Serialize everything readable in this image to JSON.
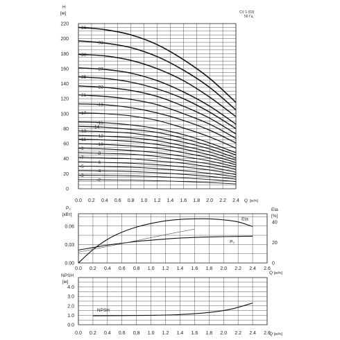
{
  "chart_data": [
    {
      "type": "line",
      "name": "head",
      "ylabel": "H",
      "yunit": "[м]",
      "xlabel": "Q",
      "xunit": "[м³/ч]",
      "note_lines": [
        "CV 1 (03)",
        "50 Гц"
      ],
      "xlim": [
        0,
        2.4
      ],
      "ylim": [
        0,
        220
      ],
      "xticks": [
        "0.0",
        "0.2",
        "0.4",
        "0.6",
        "0.8",
        "1.0",
        "1.2",
        "1.4",
        "1.6",
        "1.8",
        "2.0",
        "2.2",
        "2.4"
      ],
      "yticks": [
        "0",
        "20",
        "40",
        "60",
        "80",
        "100",
        "120",
        "140",
        "160",
        "180",
        "200",
        "220"
      ],
      "grid": true,
      "series": [
        {
          "name": "-36",
          "values": [
            {
              "x": 0,
              "y": 215
            },
            {
              "x": 0.4,
              "y": 212
            },
            {
              "x": 0.8,
              "y": 205
            },
            {
              "x": 1.2,
              "y": 192
            },
            {
              "x": 1.6,
              "y": 172
            },
            {
              "x": 2.0,
              "y": 147
            },
            {
              "x": 2.4,
              "y": 115
            }
          ]
        },
        {
          "name": "-33",
          "values": [
            {
              "x": 0,
              "y": 197
            },
            {
              "x": 0.4,
              "y": 194
            },
            {
              "x": 0.8,
              "y": 188
            },
            {
              "x": 1.2,
              "y": 176
            },
            {
              "x": 1.6,
              "y": 158
            },
            {
              "x": 2.0,
              "y": 135
            },
            {
              "x": 2.4,
              "y": 105
            }
          ]
        },
        {
          "name": "-30",
          "values": [
            {
              "x": 0,
              "y": 179
            },
            {
              "x": 0.4,
              "y": 177
            },
            {
              "x": 0.8,
              "y": 171
            },
            {
              "x": 1.2,
              "y": 160
            },
            {
              "x": 1.6,
              "y": 144
            },
            {
              "x": 2.0,
              "y": 122
            },
            {
              "x": 2.4,
              "y": 96
            }
          ]
        },
        {
          "name": "-27",
          "values": [
            {
              "x": 0,
              "y": 161
            },
            {
              "x": 0.4,
              "y": 159
            },
            {
              "x": 0.8,
              "y": 154
            },
            {
              "x": 1.2,
              "y": 144
            },
            {
              "x": 1.6,
              "y": 129
            },
            {
              "x": 2.0,
              "y": 110
            },
            {
              "x": 2.4,
              "y": 86
            }
          ]
        },
        {
          "name": "-25",
          "values": [
            {
              "x": 0,
              "y": 149
            },
            {
              "x": 0.4,
              "y": 147
            },
            {
              "x": 0.8,
              "y": 142
            },
            {
              "x": 1.2,
              "y": 133
            },
            {
              "x": 1.6,
              "y": 120
            },
            {
              "x": 2.0,
              "y": 102
            },
            {
              "x": 2.4,
              "y": 80
            }
          ]
        },
        {
          "name": "-23",
          "values": [
            {
              "x": 0,
              "y": 137
            },
            {
              "x": 0.4,
              "y": 135
            },
            {
              "x": 0.8,
              "y": 131
            },
            {
              "x": 1.2,
              "y": 123
            },
            {
              "x": 1.6,
              "y": 110
            },
            {
              "x": 2.0,
              "y": 94
            },
            {
              "x": 2.4,
              "y": 73
            }
          ]
        },
        {
          "name": "-21",
          "values": [
            {
              "x": 0,
              "y": 125
            },
            {
              "x": 0.4,
              "y": 123
            },
            {
              "x": 0.8,
              "y": 119
            },
            {
              "x": 1.2,
              "y": 112
            },
            {
              "x": 1.6,
              "y": 100
            },
            {
              "x": 2.0,
              "y": 86
            },
            {
              "x": 2.4,
              "y": 67
            }
          ]
        },
        {
          "name": "-19",
          "values": [
            {
              "x": 0,
              "y": 113
            },
            {
              "x": 0.4,
              "y": 112
            },
            {
              "x": 0.8,
              "y": 108
            },
            {
              "x": 1.2,
              "y": 101
            },
            {
              "x": 1.6,
              "y": 91
            },
            {
              "x": 2.0,
              "y": 78
            },
            {
              "x": 2.4,
              "y": 61
            }
          ]
        },
        {
          "name": "-17",
          "values": [
            {
              "x": 0,
              "y": 101
            },
            {
              "x": 0.4,
              "y": 100
            },
            {
              "x": 0.8,
              "y": 97
            },
            {
              "x": 1.2,
              "y": 91
            },
            {
              "x": 1.6,
              "y": 81
            },
            {
              "x": 2.0,
              "y": 69
            },
            {
              "x": 2.4,
              "y": 54
            }
          ]
        },
        {
          "name": "-15",
          "values": [
            {
              "x": 0,
              "y": 89
            },
            {
              "x": 0.4,
              "y": 88
            },
            {
              "x": 0.8,
              "y": 85
            },
            {
              "x": 1.2,
              "y": 80
            },
            {
              "x": 1.6,
              "y": 72
            },
            {
              "x": 2.0,
              "y": 61
            },
            {
              "x": 2.4,
              "y": 48
            }
          ]
        },
        {
          "name": "-14",
          "values": [
            {
              "x": 0,
              "y": 83
            },
            {
              "x": 0.4,
              "y": 82
            },
            {
              "x": 0.8,
              "y": 79
            },
            {
              "x": 1.2,
              "y": 75
            },
            {
              "x": 1.6,
              "y": 67
            },
            {
              "x": 2.0,
              "y": 57
            },
            {
              "x": 2.4,
              "y": 45
            }
          ]
        },
        {
          "name": "-13",
          "values": [
            {
              "x": 0,
              "y": 77
            },
            {
              "x": 0.4,
              "y": 76
            },
            {
              "x": 0.8,
              "y": 74
            },
            {
              "x": 1.2,
              "y": 69
            },
            {
              "x": 1.6,
              "y": 62
            },
            {
              "x": 2.0,
              "y": 53
            },
            {
              "x": 2.4,
              "y": 41
            }
          ]
        },
        {
          "name": "-12",
          "values": [
            {
              "x": 0,
              "y": 71
            },
            {
              "x": 0.4,
              "y": 70
            },
            {
              "x": 0.8,
              "y": 68
            },
            {
              "x": 1.2,
              "y": 64
            },
            {
              "x": 1.6,
              "y": 57
            },
            {
              "x": 2.0,
              "y": 49
            },
            {
              "x": 2.4,
              "y": 38
            }
          ]
        },
        {
          "name": "-11",
          "values": [
            {
              "x": 0,
              "y": 66
            },
            {
              "x": 0.4,
              "y": 65
            },
            {
              "x": 0.8,
              "y": 63
            },
            {
              "x": 1.2,
              "y": 59
            },
            {
              "x": 1.6,
              "y": 53
            },
            {
              "x": 2.0,
              "y": 45
            },
            {
              "x": 2.4,
              "y": 35
            }
          ]
        },
        {
          "name": "-10",
          "values": [
            {
              "x": 0,
              "y": 60
            },
            {
              "x": 0.4,
              "y": 59
            },
            {
              "x": 0.8,
              "y": 57
            },
            {
              "x": 1.2,
              "y": 54
            },
            {
              "x": 1.6,
              "y": 48
            },
            {
              "x": 2.0,
              "y": 41
            },
            {
              "x": 2.4,
              "y": 32
            }
          ]
        },
        {
          "name": "-9",
          "values": [
            {
              "x": 0,
              "y": 54
            },
            {
              "x": 0.4,
              "y": 53
            },
            {
              "x": 0.8,
              "y": 51
            },
            {
              "x": 1.2,
              "y": 48
            },
            {
              "x": 1.6,
              "y": 43
            },
            {
              "x": 2.0,
              "y": 37
            },
            {
              "x": 2.4,
              "y": 29
            }
          ]
        },
        {
          "name": "-8",
          "values": [
            {
              "x": 0,
              "y": 48
            },
            {
              "x": 0.4,
              "y": 47
            },
            {
              "x": 0.8,
              "y": 46
            },
            {
              "x": 1.2,
              "y": 43
            },
            {
              "x": 1.6,
              "y": 38
            },
            {
              "x": 2.0,
              "y": 33
            },
            {
              "x": 2.4,
              "y": 26
            }
          ]
        },
        {
          "name": "-7",
          "values": [
            {
              "x": 0,
              "y": 42
            },
            {
              "x": 0.4,
              "y": 41
            },
            {
              "x": 0.8,
              "y": 40
            },
            {
              "x": 1.2,
              "y": 37
            },
            {
              "x": 1.6,
              "y": 34
            },
            {
              "x": 2.0,
              "y": 29
            },
            {
              "x": 2.4,
              "y": 22
            }
          ]
        },
        {
          "name": "-6",
          "values": [
            {
              "x": 0,
              "y": 36
            },
            {
              "x": 0.4,
              "y": 35
            },
            {
              "x": 0.8,
              "y": 34
            },
            {
              "x": 1.2,
              "y": 32
            },
            {
              "x": 1.6,
              "y": 29
            },
            {
              "x": 2.0,
              "y": 25
            },
            {
              "x": 2.4,
              "y": 19
            }
          ]
        },
        {
          "name": "-5",
          "values": [
            {
              "x": 0,
              "y": 30
            },
            {
              "x": 0.4,
              "y": 29.6
            },
            {
              "x": 0.8,
              "y": 28.6
            },
            {
              "x": 1.2,
              "y": 26.8
            },
            {
              "x": 1.6,
              "y": 24
            },
            {
              "x": 2.0,
              "y": 20.4
            },
            {
              "x": 2.4,
              "y": 16
            }
          ]
        },
        {
          "name": "-4",
          "values": [
            {
              "x": 0,
              "y": 24
            },
            {
              "x": 0.4,
              "y": 23.7
            },
            {
              "x": 0.8,
              "y": 22.9
            },
            {
              "x": 1.2,
              "y": 21.4
            },
            {
              "x": 1.6,
              "y": 19.2
            },
            {
              "x": 2.0,
              "y": 16.4
            },
            {
              "x": 2.4,
              "y": 12.8
            }
          ]
        },
        {
          "name": "-3",
          "values": [
            {
              "x": 0,
              "y": 18
            },
            {
              "x": 0.4,
              "y": 17.8
            },
            {
              "x": 0.8,
              "y": 17.2
            },
            {
              "x": 1.2,
              "y": 16.1
            },
            {
              "x": 1.6,
              "y": 14.4
            },
            {
              "x": 2.0,
              "y": 12.3
            },
            {
              "x": 2.4,
              "y": 9.6
            }
          ]
        },
        {
          "name": "-2",
          "values": [
            {
              "x": 0,
              "y": 12
            },
            {
              "x": 0.4,
              "y": 11.9
            },
            {
              "x": 0.8,
              "y": 11.5
            },
            {
              "x": 1.2,
              "y": 10.7
            },
            {
              "x": 1.6,
              "y": 9.6
            },
            {
              "x": 2.0,
              "y": 8.2
            },
            {
              "x": 2.4,
              "y": 6.4
            }
          ]
        }
      ],
      "label_positions_note": "stage labels shown at curve start",
      "extra_labels": []
    },
    {
      "type": "line",
      "name": "power-efficiency",
      "ylabel": "P₂",
      "yunit": "[кВт]",
      "y2label": "Eta",
      "y2unit": "[%]",
      "xlabel": "Q",
      "xunit": "[м³/ч]",
      "xlim": [
        0,
        2.6
      ],
      "ylim": [
        0,
        0.08
      ],
      "y2lim": [
        0,
        48
      ],
      "xticks": [
        "0.0",
        "0.2",
        "0.4",
        "0.6",
        "0.8",
        "1.0",
        "1.2",
        "1.4",
        "1.6",
        "1.8",
        "2.0",
        "2.2",
        "2.4",
        "2.6"
      ],
      "yticks": [
        "0.00",
        "0.03",
        "0.06"
      ],
      "y2ticks": [
        "0",
        "20",
        "40"
      ],
      "grid": true,
      "series": [
        {
          "name": "Eta",
          "axis": "right",
          "values": [
            {
              "x": 0,
              "y": 0
            },
            {
              "x": 0.2,
              "y": 13
            },
            {
              "x": 0.4,
              "y": 23
            },
            {
              "x": 0.6,
              "y": 30
            },
            {
              "x": 0.8,
              "y": 35
            },
            {
              "x": 1.0,
              "y": 38.5
            },
            {
              "x": 1.2,
              "y": 41
            },
            {
              "x": 1.4,
              "y": 42.5
            },
            {
              "x": 1.6,
              "y": 43
            },
            {
              "x": 1.8,
              "y": 43
            },
            {
              "x": 2.0,
              "y": 42
            },
            {
              "x": 2.2,
              "y": 40
            },
            {
              "x": 2.4,
              "y": 35.5
            }
          ]
        },
        {
          "name": "P₂",
          "axis": "left",
          "values": [
            {
              "x": 0,
              "y": 0.021
            },
            {
              "x": 0.2,
              "y": 0.025
            },
            {
              "x": 0.4,
              "y": 0.029
            },
            {
              "x": 0.6,
              "y": 0.032
            },
            {
              "x": 0.8,
              "y": 0.035
            },
            {
              "x": 1.0,
              "y": 0.037
            },
            {
              "x": 1.2,
              "y": 0.039
            },
            {
              "x": 1.4,
              "y": 0.0405
            },
            {
              "x": 1.6,
              "y": 0.0415
            },
            {
              "x": 1.8,
              "y": 0.0422
            },
            {
              "x": 2.0,
              "y": 0.0428
            },
            {
              "x": 2.2,
              "y": 0.0432
            },
            {
              "x": 2.4,
              "y": 0.0435
            }
          ]
        },
        {
          "name": "",
          "axis": "left",
          "style": "thin",
          "values": [
            {
              "x": 0,
              "y": 0.0175
            },
            {
              "x": 0.6,
              "y": 0.0315
            },
            {
              "x": 1.2,
              "y": 0.046
            },
            {
              "x": 1.6,
              "y": 0.055
            }
          ]
        }
      ]
    },
    {
      "type": "line",
      "name": "npsh",
      "ylabel": "NPSH",
      "yunit": "[м]",
      "xlabel": "Q",
      "xunit": "[м³/ч]",
      "xlim": [
        0,
        2.6
      ],
      "ylim": [
        0,
        5
      ],
      "xticks": [
        "0.0",
        "0.2",
        "0.4",
        "0.6",
        "0.8",
        "1.0",
        "1.2",
        "1.4",
        "1.6",
        "1.8",
        "2.0",
        "2.2",
        "2.4",
        "2.6"
      ],
      "yticks": [
        "0.0",
        "1.0",
        "2.0",
        "3.0",
        "4.0"
      ],
      "grid": true,
      "series": [
        {
          "name": "NPSH",
          "values": [
            {
              "x": 0.2,
              "y": 0.95
            },
            {
              "x": 0.6,
              "y": 0.97
            },
            {
              "x": 1.0,
              "y": 1.0
            },
            {
              "x": 1.4,
              "y": 1.08
            },
            {
              "x": 1.8,
              "y": 1.3
            },
            {
              "x": 2.1,
              "y": 1.65
            },
            {
              "x": 2.4,
              "y": 2.3
            }
          ]
        }
      ]
    }
  ]
}
